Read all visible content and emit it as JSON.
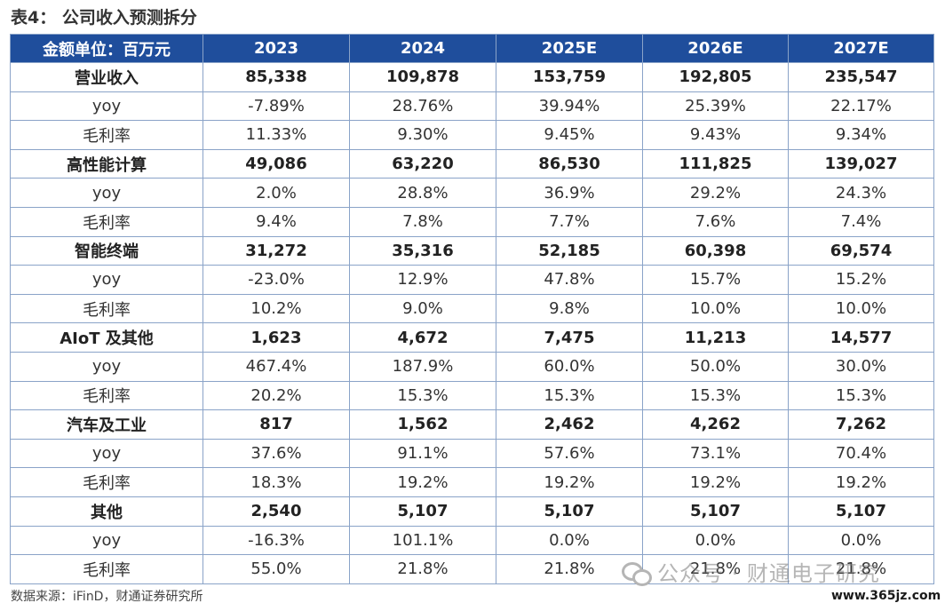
{
  "title": "表4：  公司收入预测拆分",
  "table": {
    "header": [
      "金额单位：百万元",
      "2023",
      "2024",
      "2025E",
      "2026E",
      "2027E"
    ],
    "rows": [
      {
        "type": "main",
        "cells": [
          "营业收入",
          "85,338",
          "109,878",
          "153,759",
          "192,805",
          "235,547"
        ]
      },
      {
        "type": "sub",
        "cells": [
          "yoy",
          "-7.89%",
          "28.76%",
          "39.94%",
          "25.39%",
          "22.17%"
        ]
      },
      {
        "type": "sub",
        "cells": [
          "毛利率",
          "11.33%",
          "9.30%",
          "9.45%",
          "9.43%",
          "9.34%"
        ]
      },
      {
        "type": "main",
        "cells": [
          "高性能计算",
          "49,086",
          "63,220",
          "86,530",
          "111,825",
          "139,027"
        ]
      },
      {
        "type": "sub",
        "cells": [
          "yoy",
          "2.0%",
          "28.8%",
          "36.9%",
          "29.2%",
          "24.3%"
        ]
      },
      {
        "type": "sub",
        "cells": [
          "毛利率",
          "9.4%",
          "7.8%",
          "7.7%",
          "7.6%",
          "7.4%"
        ]
      },
      {
        "type": "main",
        "cells": [
          "智能终端",
          "31,272",
          "35,316",
          "52,185",
          "60,398",
          "69,574"
        ]
      },
      {
        "type": "sub",
        "cells": [
          "yoy",
          "-23.0%",
          "12.9%",
          "47.8%",
          "15.7%",
          "15.2%"
        ]
      },
      {
        "type": "sub",
        "cells": [
          "毛利率",
          "10.2%",
          "9.0%",
          "9.8%",
          "10.0%",
          "10.0%"
        ]
      },
      {
        "type": "main",
        "cells": [
          "AIoT 及其他",
          "1,623",
          "4,672",
          "7,475",
          "11,213",
          "14,577"
        ]
      },
      {
        "type": "sub",
        "cells": [
          "yoy",
          "467.4%",
          "187.9%",
          "60.0%",
          "50.0%",
          "30.0%"
        ]
      },
      {
        "type": "sub",
        "cells": [
          "毛利率",
          "20.2%",
          "15.3%",
          "15.3%",
          "15.3%",
          "15.3%"
        ]
      },
      {
        "type": "main",
        "cells": [
          "汽车及工业",
          "817",
          "1,562",
          "2,462",
          "4,262",
          "7,262"
        ]
      },
      {
        "type": "sub",
        "cells": [
          "yoy",
          "37.6%",
          "91.1%",
          "57.6%",
          "73.1%",
          "70.4%"
        ]
      },
      {
        "type": "sub",
        "cells": [
          "毛利率",
          "18.3%",
          "19.2%",
          "19.2%",
          "19.2%",
          "19.2%"
        ]
      },
      {
        "type": "main",
        "cells": [
          "其他",
          "2,540",
          "5,107",
          "5,107",
          "5,107",
          "5,107"
        ]
      },
      {
        "type": "sub",
        "cells": [
          "yoy",
          "-16.3%",
          "101.1%",
          "0.0%",
          "0.0%",
          "0.0%"
        ]
      },
      {
        "type": "sub",
        "cells": [
          "毛利率",
          "55.0%",
          "21.8%",
          "21.8%",
          "21.8%",
          "21.8%"
        ]
      }
    ]
  },
  "source": "数据来源：iFinD，财通证券研究所",
  "watermark": {
    "icon": "wechat-icon",
    "text": "公众号 · 财通电子研究"
  },
  "site": "www.365jz.com"
}
